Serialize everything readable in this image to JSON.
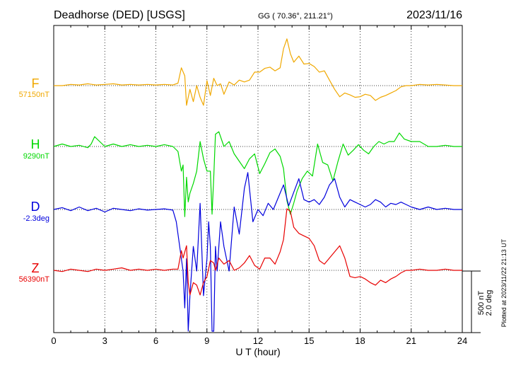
{
  "header": {
    "station": "Deadhorse (DED)  [USGS]",
    "coords": "GG ( 70.36°, 211.21°)",
    "date": "2023/11/16"
  },
  "footer": {
    "plotted": "Plotted at 2023/11/22 21:13 UT"
  },
  "chart_data": {
    "type": "line",
    "xlabel": "U T (hour)",
    "xlim": [
      0,
      24
    ],
    "xticks": [
      0,
      3,
      6,
      9,
      12,
      15,
      18,
      21,
      24
    ],
    "grid": true,
    "scale_bar": {
      "nT": "500 nT",
      "deg": "2.0 deg"
    },
    "series": [
      {
        "name": "F",
        "baseline_label": "57150nT",
        "color": "#f0a800",
        "x": [
          0,
          0.5,
          1,
          1.5,
          2,
          2.5,
          3,
          3.5,
          4,
          4.5,
          5,
          5.5,
          6,
          6.5,
          7,
          7.3,
          7.5,
          7.7,
          7.8,
          8.0,
          8.2,
          8.4,
          8.6,
          8.8,
          9.0,
          9.2,
          9.4,
          9.6,
          9.8,
          10.0,
          10.3,
          10.6,
          10.9,
          11.2,
          11.5,
          11.8,
          12.1,
          12.4,
          12.7,
          13.0,
          13.3,
          13.5,
          13.7,
          13.9,
          14.1,
          14.4,
          14.7,
          15.0,
          15.3,
          15.6,
          15.9,
          16.2,
          16.5,
          16.8,
          17.1,
          17.4,
          17.7,
          18.0,
          18.3,
          18.6,
          18.9,
          19.2,
          19.5,
          19.8,
          20.1,
          20.4,
          20.7,
          21,
          21.5,
          22,
          22.5,
          23,
          23.5,
          24
        ],
        "y": [
          0,
          0,
          10,
          5,
          15,
          5,
          10,
          15,
          5,
          10,
          5,
          10,
          5,
          10,
          5,
          20,
          145,
          80,
          -160,
          -30,
          -130,
          0,
          -95,
          -160,
          40,
          -80,
          60,
          0,
          15,
          -70,
          30,
          5,
          45,
          30,
          45,
          110,
          110,
          140,
          150,
          120,
          145,
          300,
          380,
          260,
          190,
          240,
          175,
          180,
          155,
          110,
          120,
          45,
          -30,
          -90,
          -60,
          -75,
          -95,
          -90,
          -70,
          -80,
          -120,
          -95,
          -80,
          -60,
          -40,
          -10,
          0,
          0,
          10,
          5,
          10,
          5,
          0,
          0
        ]
      },
      {
        "name": "H",
        "baseline_label": "9290nT",
        "color": "#00d800",
        "x": [
          0,
          0.5,
          1,
          1.5,
          2,
          2.2,
          2.4,
          3,
          3.5,
          4,
          4.5,
          5,
          5.5,
          6,
          6.5,
          7,
          7.3,
          7.5,
          7.6,
          7.7,
          7.8,
          7.9,
          8.0,
          8.2,
          8.4,
          8.6,
          8.8,
          9.0,
          9.2,
          9.3,
          9.4,
          9.5,
          9.7,
          10.0,
          10.3,
          10.6,
          10.9,
          11.2,
          11.5,
          11.8,
          12.1,
          12.4,
          12.7,
          13.0,
          13.3,
          13.5,
          13.7,
          13.9,
          14.1,
          14.3,
          14.6,
          14.9,
          15.2,
          15.5,
          15.8,
          16.1,
          16.4,
          16.7,
          17.0,
          17.3,
          17.6,
          17.9,
          18.2,
          18.5,
          18.8,
          19.1,
          19.4,
          19.7,
          20.0,
          20.3,
          20.6,
          21,
          21.5,
          22,
          22.5,
          23,
          23.5,
          24
        ],
        "y": [
          0,
          20,
          0,
          10,
          -10,
          20,
          80,
          0,
          20,
          0,
          15,
          0,
          10,
          0,
          15,
          0,
          -40,
          -200,
          -150,
          -570,
          -250,
          -450,
          -380,
          -300,
          -200,
          40,
          -100,
          -200,
          -200,
          -550,
          -250,
          100,
          120,
          0,
          40,
          -60,
          -120,
          -180,
          -100,
          -60,
          -220,
          -140,
          -50,
          -20,
          -80,
          -180,
          -440,
          -550,
          -460,
          -360,
          -260,
          -200,
          -240,
          20,
          -130,
          -150,
          -280,
          -120,
          20,
          -70,
          -30,
          15,
          -30,
          -60,
          0,
          40,
          20,
          40,
          40,
          110,
          60,
          40,
          40,
          0,
          0,
          10,
          0,
          0
        ]
      },
      {
        "name": "D",
        "baseline_label": "-2.3deg",
        "color": "#0000dd",
        "x": [
          0,
          0.5,
          1,
          1.5,
          2,
          2.5,
          3,
          3.5,
          4,
          4.5,
          5,
          5.5,
          6,
          6.5,
          7,
          7.2,
          7.4,
          7.6,
          7.7,
          7.8,
          7.9,
          8.0,
          8.2,
          8.4,
          8.6,
          8.8,
          9.0,
          9.1,
          9.2,
          9.3,
          9.4,
          9.5,
          9.6,
          9.8,
          10.0,
          10.3,
          10.6,
          10.9,
          11.2,
          11.4,
          11.7,
          12.0,
          12.3,
          12.6,
          12.9,
          13.2,
          13.5,
          13.8,
          14.1,
          14.4,
          14.7,
          15.0,
          15.3,
          15.6,
          15.9,
          16.2,
          16.5,
          16.8,
          17.1,
          17.4,
          17.7,
          18.0,
          18.3,
          18.6,
          18.9,
          19.2,
          19.5,
          19.8,
          20.1,
          20.4,
          20.7,
          21,
          21.5,
          22,
          22.5,
          23,
          23.5,
          24
        ],
        "y": [
          0,
          15,
          -10,
          20,
          -10,
          10,
          -20,
          10,
          0,
          -10,
          5,
          -5,
          0,
          5,
          -5,
          -100,
          -300,
          -500,
          -800,
          -400,
          -1050,
          -700,
          -300,
          -500,
          50,
          -700,
          -400,
          -100,
          -300,
          -1100,
          -1050,
          -300,
          -500,
          -100,
          -300,
          -500,
          20,
          -200,
          170,
          300,
          -100,
          0,
          -50,
          50,
          0,
          100,
          200,
          30,
          140,
          250,
          80,
          60,
          80,
          40,
          100,
          200,
          250,
          100,
          20,
          80,
          60,
          40,
          20,
          40,
          80,
          60,
          20,
          50,
          40,
          60,
          40,
          20,
          0,
          20,
          0,
          10,
          0,
          0
        ]
      },
      {
        "name": "Z",
        "baseline_label": "56390nT",
        "color": "#e80000",
        "x": [
          0,
          0.5,
          1,
          1.5,
          2,
          2.5,
          3,
          3.5,
          4,
          4.5,
          5,
          5.5,
          6,
          6.5,
          7,
          7.3,
          7.5,
          7.6,
          7.8,
          7.9,
          8.0,
          8.2,
          8.4,
          8.6,
          8.8,
          9.0,
          9.2,
          9.4,
          9.5,
          9.7,
          10.0,
          10.3,
          10.6,
          10.9,
          11.2,
          11.5,
          11.8,
          12.1,
          12.4,
          12.7,
          13.0,
          13.3,
          13.5,
          13.7,
          13.9,
          14.1,
          14.4,
          14.7,
          15.0,
          15.3,
          15.6,
          15.9,
          16.2,
          16.5,
          16.8,
          17.1,
          17.4,
          17.7,
          18.0,
          18.3,
          18.6,
          18.9,
          19.2,
          19.5,
          19.8,
          20.1,
          20.4,
          20.7,
          21,
          21.5,
          22,
          22.5,
          23,
          23.5,
          24
        ],
        "y": [
          0,
          -10,
          10,
          0,
          -10,
          10,
          0,
          10,
          20,
          0,
          10,
          0,
          10,
          0,
          10,
          10,
          160,
          100,
          200,
          -100,
          -200,
          -100,
          -120,
          -200,
          -100,
          -50,
          80,
          60,
          0,
          100,
          50,
          80,
          0,
          20,
          60,
          120,
          40,
          10,
          100,
          100,
          50,
          150,
          250,
          500,
          480,
          350,
          300,
          280,
          260,
          200,
          80,
          50,
          100,
          150,
          200,
          100,
          -50,
          -60,
          -50,
          -70,
          -100,
          -120,
          -80,
          -100,
          -70,
          -50,
          -20,
          0,
          0,
          10,
          0,
          0,
          10,
          0,
          0
        ]
      }
    ]
  }
}
